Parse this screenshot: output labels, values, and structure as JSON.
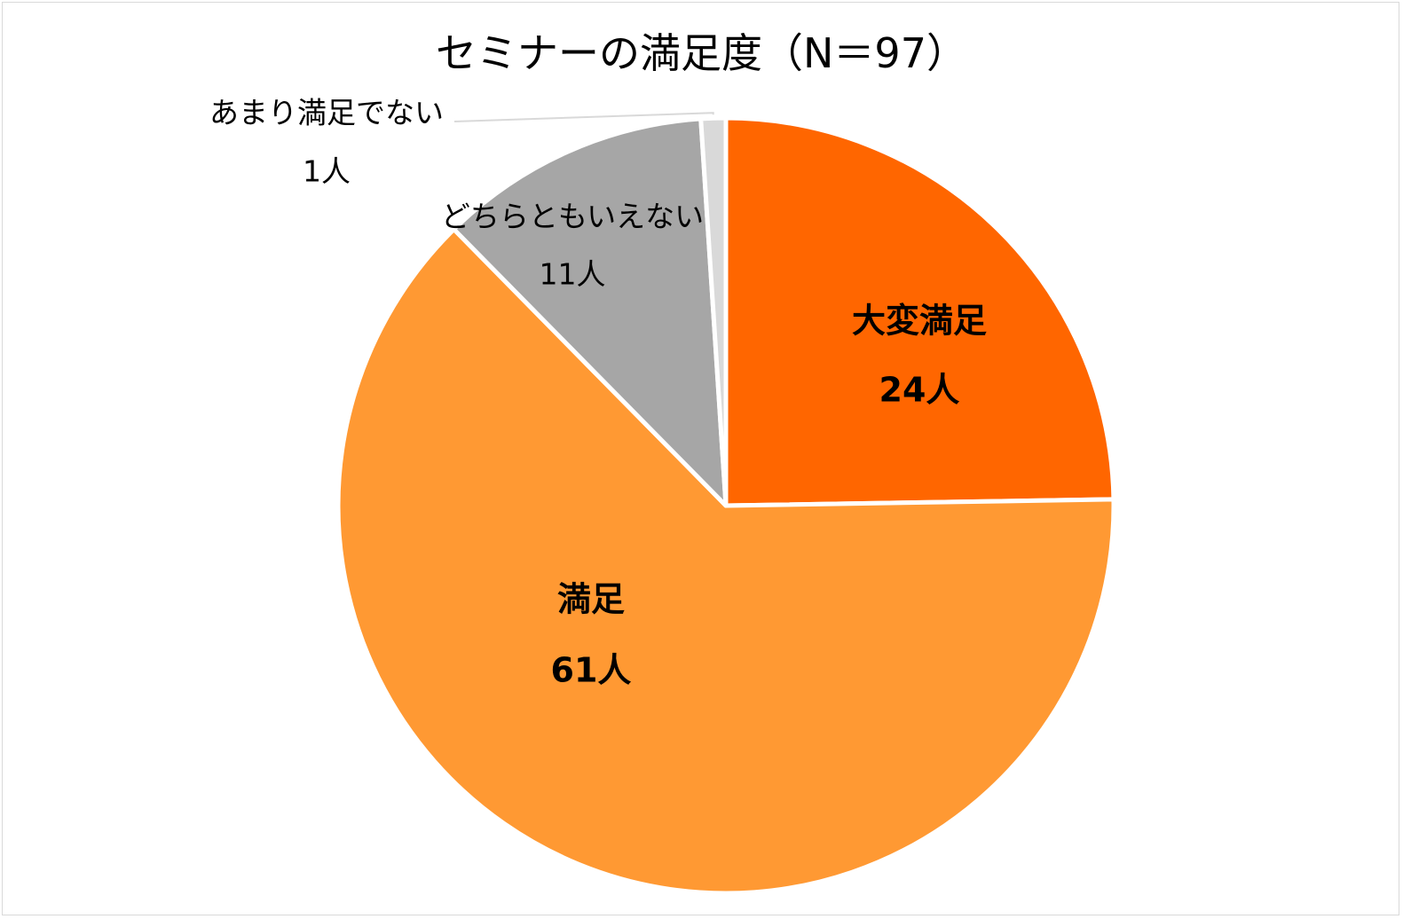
{
  "chart_data": {
    "type": "pie",
    "title": "セミナーの満足度（N＝97）",
    "total": 97,
    "slices": [
      {
        "category": "大変満足",
        "value": 24,
        "value_label": "24人",
        "color": "#FF6600"
      },
      {
        "category": "満足",
        "value": 61,
        "value_label": "61人",
        "color": "#FF9933"
      },
      {
        "category": "どちらともいえない",
        "value": 11,
        "value_label": "11人",
        "color": "#A6A6A6"
      },
      {
        "category": "あまり満足でない",
        "value": 1,
        "value_label": "1人",
        "color": "#D9D9D9"
      }
    ],
    "legend": "none",
    "start": "12 o'clock, clockwise"
  }
}
